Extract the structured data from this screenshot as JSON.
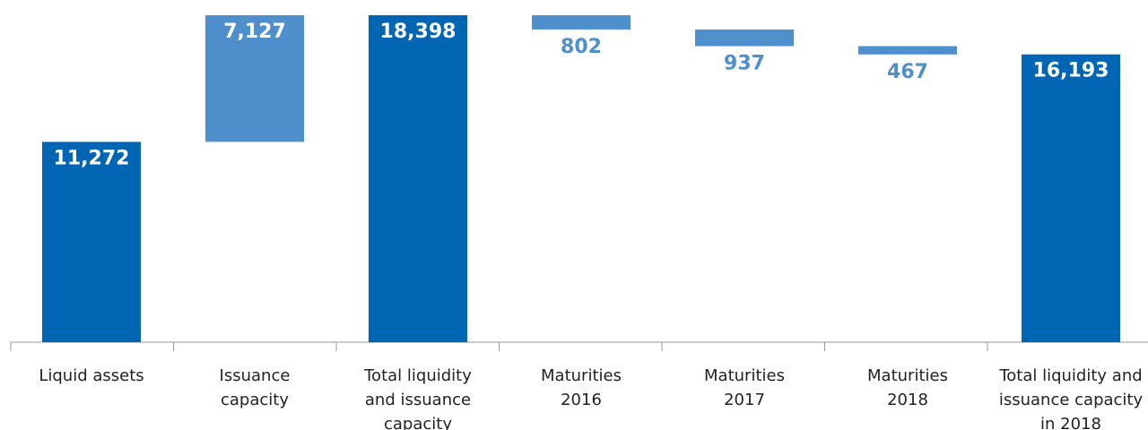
{
  "chart_data": {
    "type": "waterfall",
    "categories": [
      "Liquid assets",
      "Issuance capacity",
      "Total liquidity and issuance capacity",
      "Maturities 2016",
      "Maturities 2017",
      "Maturities 2018",
      "Total liquidity and issuance capacity in 2018"
    ],
    "values": [
      11272,
      7127,
      18398,
      -802,
      -937,
      -467,
      16193
    ],
    "value_labels": [
      "11,272",
      "7,127",
      "18,398",
      "802",
      "937",
      "467",
      "16,193"
    ],
    "measures": [
      "absolute",
      "relative",
      "total",
      "relative",
      "relative",
      "relative",
      "total"
    ],
    "colors": {
      "total": "#0066b3",
      "relative": "#4f8fcc"
    },
    "ylim": [
      0,
      18398
    ]
  }
}
